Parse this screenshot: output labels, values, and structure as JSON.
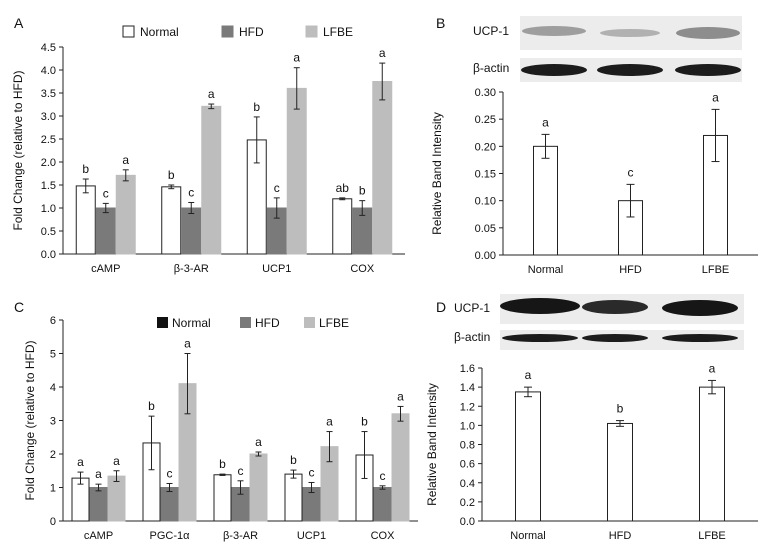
{
  "figure_type": "multi-panel bar chart with western blots",
  "colors": {
    "normal": "#ffffff",
    "hfd": "#7a7a7a",
    "lfbe": "#bdbdbd",
    "normal_legend_c": "#111111"
  },
  "panels": {
    "A": {
      "letter": "A",
      "legend": [
        "Normal",
        "HFD",
        "LFBE"
      ]
    },
    "B": {
      "letter": "B",
      "blot_labels": [
        "UCP-1",
        "β-actin"
      ]
    },
    "C": {
      "letter": "C",
      "legend": [
        "Normal",
        "HFD",
        "LFBE"
      ]
    },
    "D": {
      "letter": "D",
      "blot_labels": [
        "UCP-1",
        "β-actin"
      ]
    }
  },
  "chart_data": [
    {
      "id": "A",
      "type": "bar",
      "title": "",
      "xlabel": "",
      "ylabel": "Fold Change (relative to HFD)",
      "ylim": [
        0,
        4.5
      ],
      "yticks": [
        "0.0",
        "0.5",
        "1.0",
        "1.5",
        "2.0",
        "2.5",
        "3.0",
        "3.5",
        "4.0",
        "4.5"
      ],
      "categories": [
        "cAMP",
        "β-3-AR",
        "UCP1",
        "COX"
      ],
      "series": [
        {
          "name": "Normal",
          "values": [
            1.48,
            1.46,
            2.48,
            1.2
          ],
          "errors": [
            0.15,
            0.04,
            0.5,
            0.02
          ],
          "letters": [
            "b",
            "b",
            "b",
            "ab"
          ]
        },
        {
          "name": "HFD",
          "values": [
            1.0,
            1.0,
            1.0,
            1.0
          ],
          "errors": [
            0.1,
            0.12,
            0.22,
            0.16
          ],
          "letters": [
            "c",
            "c",
            "c",
            "b"
          ]
        },
        {
          "name": "LFBE",
          "values": [
            1.71,
            3.21,
            3.6,
            3.75
          ],
          "errors": [
            0.12,
            0.05,
            0.45,
            0.4
          ],
          "letters": [
            "a",
            "a",
            "a",
            "a"
          ]
        }
      ]
    },
    {
      "id": "B",
      "type": "bar",
      "title": "",
      "xlabel": "",
      "ylabel": "Relative Band Intensity",
      "ylim": [
        0,
        0.3
      ],
      "yticks": [
        "0.00",
        "0.05",
        "0.10",
        "0.15",
        "0.20",
        "0.25",
        "0.30"
      ],
      "categories": [
        "Normal",
        "HFD",
        "LFBE"
      ],
      "values": [
        0.2,
        0.1,
        0.22
      ],
      "errors": [
        0.022,
        0.03,
        0.048
      ],
      "letters": [
        "a",
        "c",
        "a"
      ]
    },
    {
      "id": "C",
      "type": "bar",
      "title": "",
      "xlabel": "",
      "ylabel": "Fold Change (relative to HFD)",
      "ylim": [
        0,
        6
      ],
      "yticks": [
        "0",
        "1",
        "2",
        "3",
        "4",
        "5",
        "6"
      ],
      "categories": [
        "cAMP",
        "PGC-1α",
        "β-3-AR",
        "UCP1",
        "COX"
      ],
      "series": [
        {
          "name": "Normal",
          "values": [
            1.28,
            2.33,
            1.38,
            1.4,
            1.97
          ],
          "errors": [
            0.18,
            0.8,
            0.02,
            0.12,
            0.7
          ],
          "letters": [
            "a",
            "b",
            "b",
            "b",
            "b"
          ]
        },
        {
          "name": "HFD",
          "values": [
            1.0,
            1.0,
            1.0,
            1.0,
            1.0
          ],
          "errors": [
            0.1,
            0.12,
            0.2,
            0.15,
            0.05
          ],
          "letters": [
            "a",
            "c",
            "c",
            "c",
            "c"
          ]
        },
        {
          "name": "LFBE",
          "values": [
            1.34,
            4.1,
            2.0,
            2.22,
            3.2
          ],
          "errors": [
            0.16,
            0.9,
            0.06,
            0.45,
            0.22
          ],
          "letters": [
            "a",
            "a",
            "a",
            "a",
            "a"
          ]
        }
      ]
    },
    {
      "id": "D",
      "type": "bar",
      "title": "",
      "xlabel": "",
      "ylabel": "Relative Band Intensity",
      "ylim": [
        0,
        1.6
      ],
      "yticks": [
        "0.0",
        "0.2",
        "0.4",
        "0.6",
        "0.8",
        "1.0",
        "1.2",
        "1.4",
        "1.6"
      ],
      "categories": [
        "Normal",
        "HFD",
        "LFBE"
      ],
      "values": [
        1.35,
        1.02,
        1.4
      ],
      "errors": [
        0.05,
        0.03,
        0.07
      ],
      "letters": [
        "a",
        "b",
        "a"
      ]
    }
  ]
}
